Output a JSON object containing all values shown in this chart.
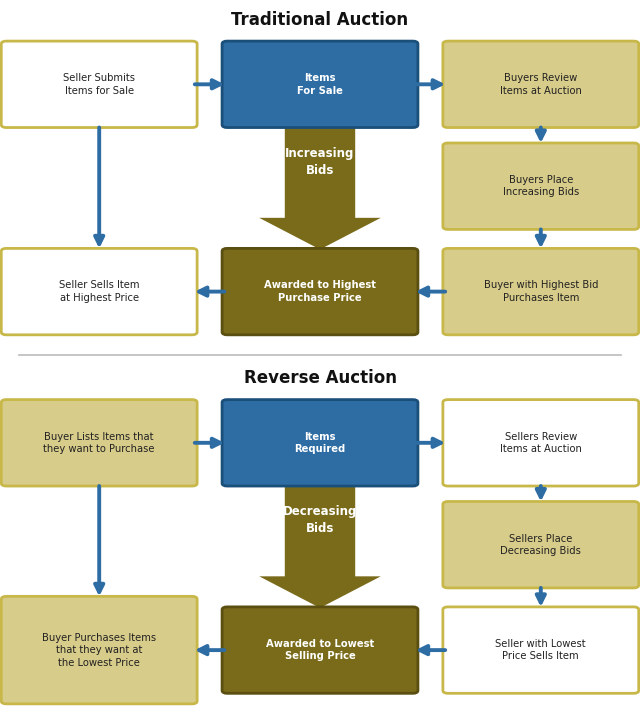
{
  "title1": "Traditional Auction",
  "title2": "Reverse Auction",
  "bg_color": "#ffffff",
  "divider_color": "#bbbbbb",
  "blue_box_color": "#2E6DA4",
  "blue_box_text_color": "#ffffff",
  "dark_gold_box_color": "#7A6B1A",
  "dark_gold_box_text_color": "#ffffff",
  "tan_box_color": "#D8CC8A",
  "tan_box_text_color": "#222222",
  "white_box_color": "#ffffff",
  "white_box_border_color": "#C8B84A",
  "tan_box_border_color": "#C8B84A",
  "blue_box_border_color": "#1a4f7a",
  "dark_gold_box_border_color": "#5a4e10",
  "white_box_text_color": "#222222",
  "arrow_color": "#2E6DA4",
  "big_arrow_color": "#7A6B1A",
  "trad_boxes": [
    {
      "label": "Seller Submits\nItems for Sale",
      "type": "white",
      "col": 0,
      "row": 0
    },
    {
      "label": "Items\nFor Sale",
      "type": "blue",
      "col": 1,
      "row": 0
    },
    {
      "label": "Buyers Review\nItems at Auction",
      "type": "tan",
      "col": 2,
      "row": 0
    },
    {
      "label": "Buyers Place\nIncreasing Bids",
      "type": "tan",
      "col": 2,
      "row": 1
    },
    {
      "label": "Buyer with Highest Bid\nPurchases Item",
      "type": "tan",
      "col": 2,
      "row": 2
    },
    {
      "label": "Awarded to Highest\nPurchase Price",
      "type": "dark_gold",
      "col": 1,
      "row": 2
    },
    {
      "label": "Seller Sells Item\nat Highest Price",
      "type": "white",
      "col": 0,
      "row": 2
    }
  ],
  "trad_arrow_label": "Increasing\nBids",
  "rev_boxes": [
    {
      "label": "Buyer Lists Items that\nthey want to Purchase",
      "type": "tan",
      "col": 0,
      "row": 0
    },
    {
      "label": "Items\nRequired",
      "type": "blue",
      "col": 1,
      "row": 0
    },
    {
      "label": "Sellers Review\nItems at Auction",
      "type": "white",
      "col": 2,
      "row": 0
    },
    {
      "label": "Sellers Place\nDecreasing Bids",
      "type": "tan",
      "col": 2,
      "row": 1
    },
    {
      "label": "Seller with Lowest\nPrice Sells Item",
      "type": "white",
      "col": 2,
      "row": 2
    },
    {
      "label": "Awarded to Lowest\nSelling Price",
      "type": "dark_gold",
      "col": 1,
      "row": 2
    },
    {
      "label": "Buyer Purchases Items\nthat they want at\nthe Lowest Price",
      "type": "tan",
      "col": 0,
      "row": 2
    }
  ],
  "rev_arrow_label": "Decreasing\nBids"
}
